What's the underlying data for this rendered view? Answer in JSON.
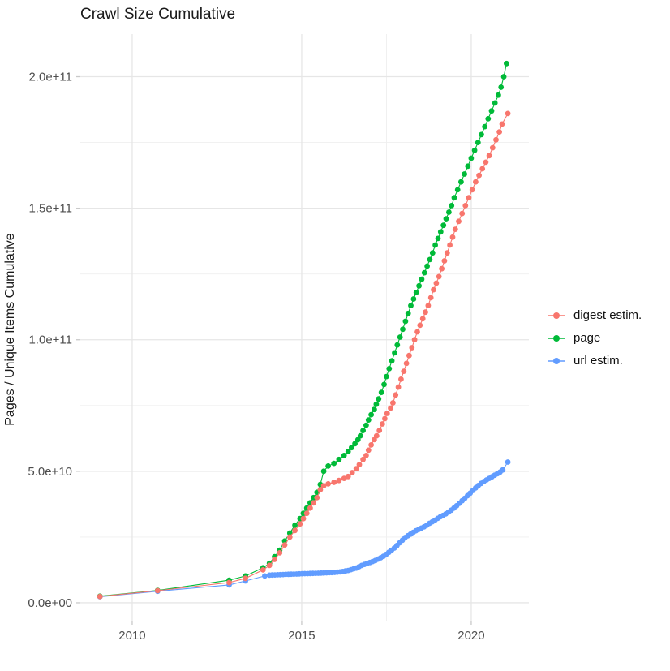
{
  "chart_data": {
    "type": "line",
    "title": "Crawl Size Cumulative",
    "xlabel": "",
    "ylabel": "Pages / Unique Items Cumulative",
    "grid": true,
    "legend_position": "right",
    "background": "#ffffff",
    "gridline_color": "#e6e6e6",
    "axis_text_color": "#4d4d4d",
    "x_axis": {
      "range": [
        2008.47,
        2021.7
      ],
      "ticks": [
        {
          "value": 2010,
          "label": "2010"
        },
        {
          "value": 2015,
          "label": "2015"
        },
        {
          "value": 2020,
          "label": "2020"
        }
      ],
      "minor_ticks": [
        2012.5,
        2017.5
      ]
    },
    "y_axis": {
      "range": [
        -6800000000.0,
        216200000000.0
      ],
      "ticks": [
        {
          "value": 0,
          "label": "0.0e+00"
        },
        {
          "value": 50000000000.0,
          "label": "5.0e+10"
        },
        {
          "value": 100000000000.0,
          "label": "1.0e+11"
        },
        {
          "value": 150000000000.0,
          "label": "1.5e+11"
        },
        {
          "value": 200000000000.0,
          "label": "2.0e+11"
        }
      ],
      "minor_ticks": [
        25000000000.0,
        75000000000.0,
        125000000000.0,
        175000000000.0
      ]
    },
    "series": [
      {
        "name": "digest estim.",
        "color": "#F8766D",
        "points": [
          [
            2009.05,
            2400000000.0
          ],
          [
            2010.75,
            4600000000.0
          ],
          [
            2012.86,
            7700000000.0
          ],
          [
            2013.34,
            9300000000.0
          ],
          [
            2013.86,
            12500000000.0
          ],
          [
            2014.05,
            14200000000.0
          ],
          [
            2014.2,
            16500000000.0
          ],
          [
            2014.35,
            19000000000.0
          ],
          [
            2014.5,
            22000000000.0
          ],
          [
            2014.65,
            25000000000.0
          ],
          [
            2014.8,
            27500000000.0
          ],
          [
            2014.95,
            30000000000.0
          ],
          [
            2015.05,
            32000000000.0
          ],
          [
            2015.15,
            34000000000.0
          ],
          [
            2015.25,
            36000000000.0
          ],
          [
            2015.35,
            38000000000.0
          ],
          [
            2015.45,
            40000000000.0
          ],
          [
            2015.55,
            43000000000.0
          ],
          [
            2015.65,
            44500000000.0
          ],
          [
            2015.78,
            45200000000.0
          ],
          [
            2015.95,
            45800000000.0
          ],
          [
            2016.1,
            46500000000.0
          ],
          [
            2016.25,
            47300000000.0
          ],
          [
            2016.37,
            48000000000.0
          ],
          [
            2016.49,
            49500000000.0
          ],
          [
            2016.61,
            51000000000.0
          ],
          [
            2016.7,
            52500000000.0
          ],
          [
            2016.81,
            54500000000.0
          ],
          [
            2016.9,
            56000000000.0
          ],
          [
            2016.97,
            58000000000.0
          ],
          [
            2017.05,
            60000000000.0
          ],
          [
            2017.14,
            62000000000.0
          ],
          [
            2017.21,
            63500000000.0
          ],
          [
            2017.29,
            65500000000.0
          ],
          [
            2017.38,
            68000000000.0
          ],
          [
            2017.45,
            70000000000.0
          ],
          [
            2017.52,
            72000000000.0
          ],
          [
            2017.62,
            74000000000.0
          ],
          [
            2017.69,
            76000000000.0
          ],
          [
            2017.77,
            79000000000.0
          ],
          [
            2017.85,
            82000000000.0
          ],
          [
            2017.93,
            85000000000.0
          ],
          [
            2018.01,
            88000000000.0
          ],
          [
            2018.09,
            91000000000.0
          ],
          [
            2018.17,
            94000000000.0
          ],
          [
            2018.25,
            97000000000.0
          ],
          [
            2018.33,
            100000000000.0
          ],
          [
            2018.41,
            103000000000.0
          ],
          [
            2018.49,
            105500000000.0
          ],
          [
            2018.57,
            108000000000.0
          ],
          [
            2018.65,
            110500000000.0
          ],
          [
            2018.73,
            113000000000.0
          ],
          [
            2018.81,
            116000000000.0
          ],
          [
            2018.89,
            119000000000.0
          ],
          [
            2018.97,
            121500000000.0
          ],
          [
            2019.05,
            124000000000.0
          ],
          [
            2019.13,
            127000000000.0
          ],
          [
            2019.21,
            130000000000.0
          ],
          [
            2019.29,
            133000000000.0
          ],
          [
            2019.37,
            136000000000.0
          ],
          [
            2019.45,
            139000000000.0
          ],
          [
            2019.53,
            142000000000.0
          ],
          [
            2019.63,
            145000000000.0
          ],
          [
            2019.73,
            148000000000.0
          ],
          [
            2019.83,
            151000000000.0
          ],
          [
            2019.93,
            154000000000.0
          ],
          [
            2020.03,
            157000000000.0
          ],
          [
            2020.13,
            160000000000.0
          ],
          [
            2020.23,
            162500000000.0
          ],
          [
            2020.33,
            165000000000.0
          ],
          [
            2020.43,
            167500000000.0
          ],
          [
            2020.53,
            170000000000.0
          ],
          [
            2020.63,
            173000000000.0
          ],
          [
            2020.73,
            176000000000.0
          ],
          [
            2020.83,
            179000000000.0
          ],
          [
            2020.91,
            182000000000.0
          ],
          [
            2021.08,
            186000000000.0
          ]
        ]
      },
      {
        "name": "page",
        "color": "#00BA38",
        "points": [
          [
            2009.05,
            2500000000.0
          ],
          [
            2010.75,
            4700000000.0
          ],
          [
            2012.86,
            8600000000.0
          ],
          [
            2013.34,
            10200000000.0
          ],
          [
            2013.86,
            13300000000.0
          ],
          [
            2014.05,
            15000000000.0
          ],
          [
            2014.2,
            17500000000.0
          ],
          [
            2014.35,
            20000000000.0
          ],
          [
            2014.5,
            23500000000.0
          ],
          [
            2014.65,
            26500000000.0
          ],
          [
            2014.8,
            29500000000.0
          ],
          [
            2014.95,
            32000000000.0
          ],
          [
            2015.05,
            34000000000.0
          ],
          [
            2015.15,
            36000000000.0
          ],
          [
            2015.25,
            38000000000.0
          ],
          [
            2015.35,
            40000000000.0
          ],
          [
            2015.45,
            42000000000.0
          ],
          [
            2015.55,
            45000000000.0
          ],
          [
            2015.65,
            50000000000.0
          ],
          [
            2015.78,
            52000000000.0
          ],
          [
            2015.95,
            53000000000.0
          ],
          [
            2016.1,
            54500000000.0
          ],
          [
            2016.25,
            56000000000.0
          ],
          [
            2016.37,
            57500000000.0
          ],
          [
            2016.47,
            59000000000.0
          ],
          [
            2016.57,
            60500000000.0
          ],
          [
            2016.66,
            62000000000.0
          ],
          [
            2016.73,
            63500000000.0
          ],
          [
            2016.81,
            65500000000.0
          ],
          [
            2016.9,
            67500000000.0
          ],
          [
            2016.97,
            69500000000.0
          ],
          [
            2017.05,
            71500000000.0
          ],
          [
            2017.14,
            73500000000.0
          ],
          [
            2017.2,
            75500000000.0
          ],
          [
            2017.27,
            77500000000.0
          ],
          [
            2017.35,
            80000000000.0
          ],
          [
            2017.43,
            83000000000.0
          ],
          [
            2017.5,
            86000000000.0
          ],
          [
            2017.58,
            89000000000.0
          ],
          [
            2017.66,
            92000000000.0
          ],
          [
            2017.74,
            95000000000.0
          ],
          [
            2017.82,
            98000000000.0
          ],
          [
            2017.9,
            101000000000.0
          ],
          [
            2017.98,
            104000000000.0
          ],
          [
            2018.06,
            107000000000.0
          ],
          [
            2018.14,
            110000000000.0
          ],
          [
            2018.22,
            113000000000.0
          ],
          [
            2018.3,
            115500000000.0
          ],
          [
            2018.38,
            118000000000.0
          ],
          [
            2018.46,
            120500000000.0
          ],
          [
            2018.54,
            123000000000.0
          ],
          [
            2018.62,
            125500000000.0
          ],
          [
            2018.7,
            128000000000.0
          ],
          [
            2018.78,
            130500000000.0
          ],
          [
            2018.86,
            133000000000.0
          ],
          [
            2018.94,
            136000000000.0
          ],
          [
            2019.02,
            138500000000.0
          ],
          [
            2019.1,
            141000000000.0
          ],
          [
            2019.18,
            143500000000.0
          ],
          [
            2019.26,
            146000000000.0
          ],
          [
            2019.34,
            148500000000.0
          ],
          [
            2019.42,
            151000000000.0
          ],
          [
            2019.5,
            154000000000.0
          ],
          [
            2019.6,
            157000000000.0
          ],
          [
            2019.7,
            160000000000.0
          ],
          [
            2019.8,
            163000000000.0
          ],
          [
            2019.9,
            166000000000.0
          ],
          [
            2020.0,
            169000000000.0
          ],
          [
            2020.1,
            172000000000.0
          ],
          [
            2020.2,
            175000000000.0
          ],
          [
            2020.3,
            178000000000.0
          ],
          [
            2020.4,
            181000000000.0
          ],
          [
            2020.5,
            184000000000.0
          ],
          [
            2020.6,
            187000000000.0
          ],
          [
            2020.7,
            190000000000.0
          ],
          [
            2020.8,
            193000000000.0
          ],
          [
            2020.88,
            196000000000.0
          ],
          [
            2020.96,
            200000000000.0
          ],
          [
            2021.04,
            205000000000.0
          ]
        ]
      },
      {
        "name": "url estim.",
        "color": "#619CFF",
        "points": [
          [
            2009.05,
            2300000000.0
          ],
          [
            2010.75,
            4400000000.0
          ],
          [
            2012.86,
            6800000000.0
          ],
          [
            2013.34,
            8300000000.0
          ],
          [
            2013.91,
            10200000000.0
          ],
          [
            2014.05,
            10500000000.0
          ],
          [
            2014.13,
            10550000000.0
          ],
          [
            2014.21,
            10600000000.0
          ],
          [
            2014.29,
            10650000000.0
          ],
          [
            2014.37,
            10700000000.0
          ],
          [
            2014.45,
            10750000000.0
          ],
          [
            2014.53,
            10800000000.0
          ],
          [
            2014.61,
            10850000000.0
          ],
          [
            2014.69,
            10880000000.0
          ],
          [
            2014.77,
            10900000000.0
          ],
          [
            2014.85,
            10950000000.0
          ],
          [
            2014.93,
            11000000000.0
          ],
          [
            2015.01,
            11050000000.0
          ],
          [
            2015.09,
            11080000000.0
          ],
          [
            2015.17,
            11100000000.0
          ],
          [
            2015.25,
            11150000000.0
          ],
          [
            2015.33,
            11180000000.0
          ],
          [
            2015.41,
            11200000000.0
          ],
          [
            2015.49,
            11250000000.0
          ],
          [
            2015.57,
            11300000000.0
          ],
          [
            2015.65,
            11350000000.0
          ],
          [
            2015.73,
            11400000000.0
          ],
          [
            2015.81,
            11450000000.0
          ],
          [
            2015.89,
            11500000000.0
          ],
          [
            2015.97,
            11550000000.0
          ],
          [
            2016.05,
            11650000000.0
          ],
          [
            2016.13,
            11750000000.0
          ],
          [
            2016.21,
            11900000000.0
          ],
          [
            2016.29,
            12100000000.0
          ],
          [
            2016.37,
            12300000000.0
          ],
          [
            2016.45,
            12600000000.0
          ],
          [
            2016.53,
            12900000000.0
          ],
          [
            2016.61,
            13200000000.0
          ],
          [
            2016.69,
            13700000000.0
          ],
          [
            2016.77,
            14200000000.0
          ],
          [
            2016.85,
            14600000000.0
          ],
          [
            2016.93,
            15000000000.0
          ],
          [
            2017.01,
            15300000000.0
          ],
          [
            2017.09,
            15700000000.0
          ],
          [
            2017.17,
            16100000000.0
          ],
          [
            2017.25,
            16600000000.0
          ],
          [
            2017.33,
            17100000000.0
          ],
          [
            2017.41,
            17700000000.0
          ],
          [
            2017.49,
            18400000000.0
          ],
          [
            2017.57,
            19200000000.0
          ],
          [
            2017.65,
            20000000000.0
          ],
          [
            2017.73,
            20800000000.0
          ],
          [
            2017.81,
            21800000000.0
          ],
          [
            2017.89,
            22800000000.0
          ],
          [
            2017.97,
            23800000000.0
          ],
          [
            2018.05,
            24800000000.0
          ],
          [
            2018.13,
            25500000000.0
          ],
          [
            2018.21,
            26100000000.0
          ],
          [
            2018.29,
            26800000000.0
          ],
          [
            2018.37,
            27400000000.0
          ],
          [
            2018.45,
            27900000000.0
          ],
          [
            2018.53,
            28400000000.0
          ],
          [
            2018.61,
            28900000000.0
          ],
          [
            2018.69,
            29500000000.0
          ],
          [
            2018.77,
            30200000000.0
          ],
          [
            2018.85,
            30800000000.0
          ],
          [
            2018.93,
            31400000000.0
          ],
          [
            2019.01,
            32100000000.0
          ],
          [
            2019.09,
            32700000000.0
          ],
          [
            2019.17,
            33200000000.0
          ],
          [
            2019.25,
            33800000000.0
          ],
          [
            2019.33,
            34500000000.0
          ],
          [
            2019.41,
            35200000000.0
          ],
          [
            2019.49,
            36000000000.0
          ],
          [
            2019.57,
            36900000000.0
          ],
          [
            2019.65,
            37800000000.0
          ],
          [
            2019.73,
            38800000000.0
          ],
          [
            2019.81,
            39700000000.0
          ],
          [
            2019.89,
            40700000000.0
          ],
          [
            2019.97,
            41700000000.0
          ],
          [
            2020.05,
            42700000000.0
          ],
          [
            2020.13,
            43700000000.0
          ],
          [
            2020.21,
            44600000000.0
          ],
          [
            2020.29,
            45400000000.0
          ],
          [
            2020.37,
            46100000000.0
          ],
          [
            2020.45,
            46700000000.0
          ],
          [
            2020.53,
            47300000000.0
          ],
          [
            2020.61,
            47900000000.0
          ],
          [
            2020.69,
            48500000000.0
          ],
          [
            2020.77,
            49100000000.0
          ],
          [
            2020.85,
            49700000000.0
          ],
          [
            2020.93,
            50500000000.0
          ],
          [
            2021.08,
            53500000000.0
          ]
        ]
      }
    ]
  }
}
